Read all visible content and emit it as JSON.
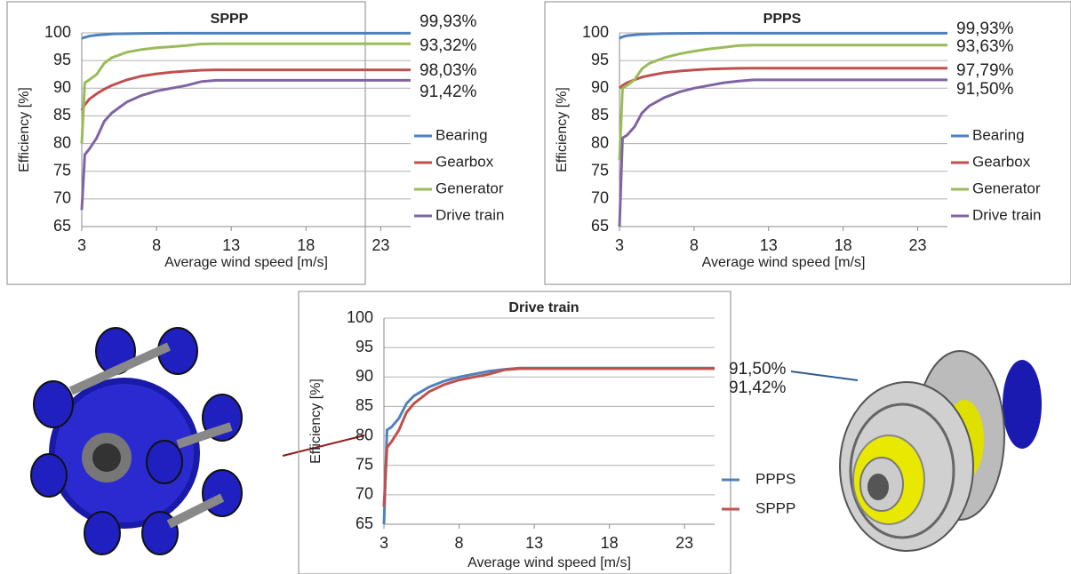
{
  "chart_data": [
    {
      "type": "line",
      "title": "SPPP",
      "x_label": "Average wind speed [m/s]",
      "y_label": "Efficiency [%]",
      "x": [
        3,
        3.2,
        3.5,
        4,
        4.5,
        5,
        6,
        7,
        8,
        9,
        10,
        11,
        12,
        25
      ],
      "xlim": [
        3,
        25
      ],
      "xticks": [
        3,
        8,
        13,
        18,
        23
      ],
      "ylim": [
        65,
        100
      ],
      "yticks": [
        65,
        70,
        75,
        80,
        85,
        90,
        95,
        100
      ],
      "grid": true,
      "series": [
        {
          "name": "Bearing",
          "color": "#4f81bd",
          "values": [
            99,
            99.2,
            99.4,
            99.6,
            99.7,
            99.8,
            99.85,
            99.9,
            99.92,
            99.93,
            99.93,
            99.93,
            99.93,
            99.93
          ],
          "end_label": "99,93%"
        },
        {
          "name": "Gearbox",
          "color": "#c0504d",
          "values": [
            86,
            87,
            88,
            89,
            89.8,
            90.5,
            91.5,
            92.2,
            92.6,
            92.9,
            93.1,
            93.25,
            93.32,
            93.32
          ],
          "end_label": "93,32%"
        },
        {
          "name": "Generator",
          "color": "#9bbb59",
          "values": [
            80,
            91,
            91.5,
            92.5,
            94.5,
            95.5,
            96.5,
            97,
            97.3,
            97.5,
            97.7,
            98,
            98.03,
            98.03
          ],
          "end_label": "98,03%"
        },
        {
          "name": "Drive train",
          "color": "#8064a2",
          "values": [
            68,
            78,
            79,
            81,
            84,
            85.5,
            87.5,
            88.7,
            89.5,
            90,
            90.5,
            91.2,
            91.42,
            91.42
          ],
          "end_label": "91,42%"
        }
      ]
    },
    {
      "type": "line",
      "title": "PPPS",
      "x_label": "Average wind speed [m/s]",
      "y_label": "Efficiency [%]",
      "x": [
        3,
        3.2,
        3.5,
        4,
        4.5,
        5,
        6,
        7,
        8,
        9,
        10,
        11,
        12,
        25
      ],
      "xlim": [
        3,
        25
      ],
      "xticks": [
        3,
        8,
        13,
        18,
        23
      ],
      "ylim": [
        65,
        100
      ],
      "yticks": [
        65,
        70,
        75,
        80,
        85,
        90,
        95,
        100
      ],
      "grid": true,
      "series": [
        {
          "name": "Bearing",
          "color": "#4f81bd",
          "values": [
            99,
            99.3,
            99.5,
            99.65,
            99.75,
            99.8,
            99.87,
            99.9,
            99.92,
            99.93,
            99.93,
            99.93,
            99.93,
            99.93
          ],
          "end_label": "99,93%"
        },
        {
          "name": "Gearbox",
          "color": "#c0504d",
          "values": [
            90,
            90.5,
            91,
            91.5,
            92,
            92.3,
            92.8,
            93.1,
            93.3,
            93.45,
            93.55,
            93.6,
            93.63,
            93.63
          ],
          "end_label": "93,63%"
        },
        {
          "name": "Generator",
          "color": "#9bbb59",
          "values": [
            77,
            90,
            90.5,
            91.5,
            93.5,
            94.5,
            95.5,
            96.2,
            96.7,
            97.1,
            97.4,
            97.7,
            97.79,
            97.79
          ],
          "end_label": "97,79%"
        },
        {
          "name": "Drive train",
          "color": "#8064a2",
          "values": [
            65,
            81,
            81.5,
            83,
            85.5,
            86.8,
            88.3,
            89.3,
            90,
            90.5,
            91,
            91.3,
            91.5,
            91.5
          ],
          "end_label": "91,50%"
        }
      ]
    },
    {
      "type": "line",
      "title": "Drive train",
      "x_label": "Average wind speed [m/s]",
      "y_label": "Efficiency [%]",
      "x": [
        3,
        3.2,
        3.5,
        4,
        4.5,
        5,
        6,
        7,
        8,
        9,
        10,
        11,
        12,
        25
      ],
      "xlim": [
        3,
        25
      ],
      "xticks": [
        3,
        8,
        13,
        18,
        23
      ],
      "ylim": [
        65,
        100
      ],
      "yticks": [
        65,
        70,
        75,
        80,
        85,
        90,
        95,
        100
      ],
      "grid": true,
      "series": [
        {
          "name": "PPPS",
          "color": "#4f81bd",
          "values": [
            65,
            81,
            81.5,
            83,
            85.5,
            86.8,
            88.3,
            89.3,
            90,
            90.5,
            91,
            91.3,
            91.5,
            91.5
          ],
          "end_label": "91,50%"
        },
        {
          "name": "SPPP",
          "color": "#c0504d",
          "values": [
            68,
            78,
            79,
            81,
            84,
            85.5,
            87.5,
            88.7,
            89.5,
            90,
            90.5,
            91.2,
            91.42,
            91.42
          ],
          "end_label": "91,42%"
        }
      ]
    }
  ]
}
